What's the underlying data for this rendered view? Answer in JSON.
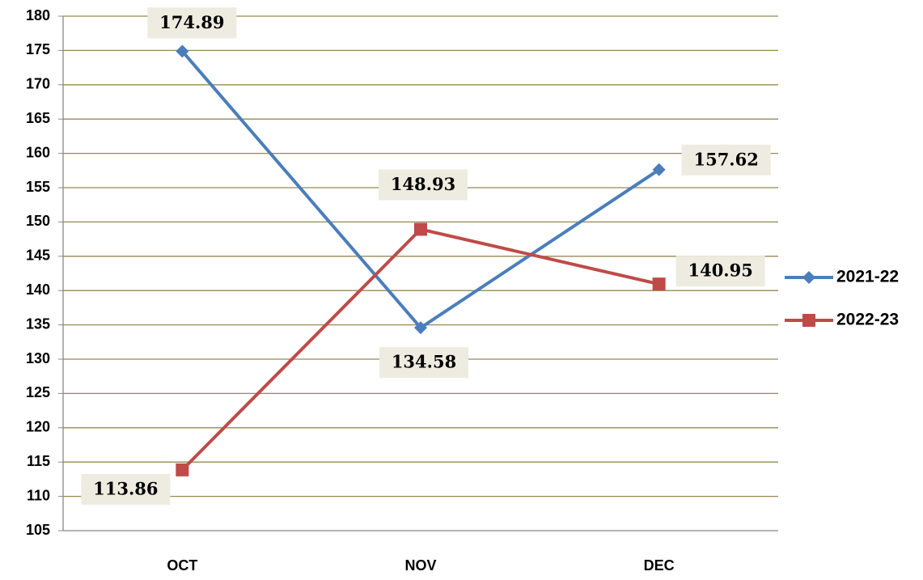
{
  "chart_data": {
    "type": "line",
    "categories": [
      "OCT",
      "NOV",
      "DEC"
    ],
    "series": [
      {
        "name": "2021-22",
        "color": "#4a7ebb",
        "marker": "diamond",
        "values": [
          174.89,
          134.58,
          157.62
        ]
      },
      {
        "name": "2022-23",
        "color": "#be4b48",
        "marker": "square",
        "values": [
          113.86,
          148.93,
          140.95
        ]
      }
    ],
    "ylim": [
      105,
      180
    ],
    "yticks": [
      105,
      110,
      115,
      120,
      125,
      130,
      135,
      140,
      145,
      150,
      155,
      160,
      165,
      170,
      175,
      180
    ],
    "grid": true,
    "legend": "right"
  }
}
